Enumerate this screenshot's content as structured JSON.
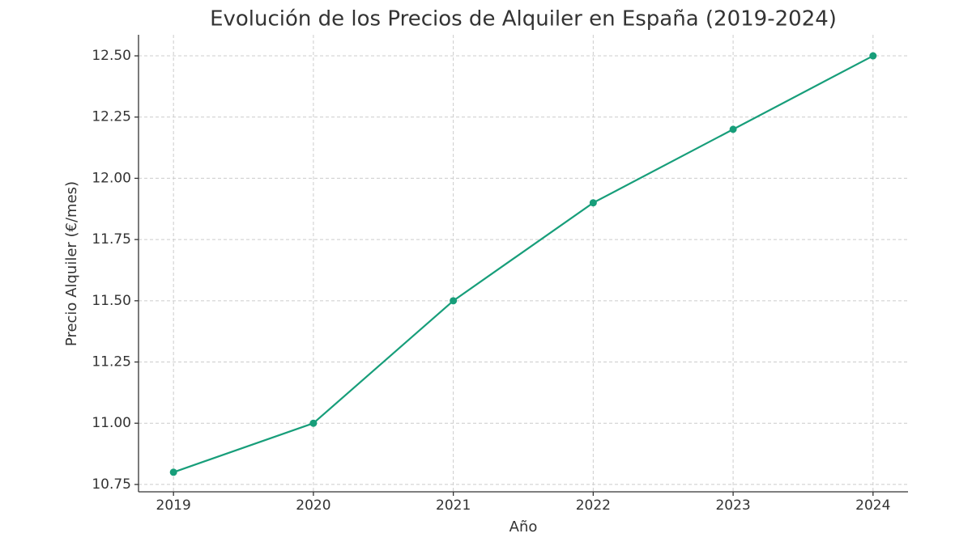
{
  "chart_data": {
    "type": "line",
    "title": "Evolución de los Precios de Alquiler en España (2019-2024)",
    "x_label": "Año",
    "y_label": "Precio Alquiler (€/mes)",
    "x": [
      2019,
      2020,
      2021,
      2022,
      2023,
      2024
    ],
    "series": [
      {
        "color": "#179e7a",
        "values": [
          10.8,
          11.0,
          11.5,
          11.9,
          12.2,
          12.5
        ]
      }
    ],
    "xlim": [
      2018.75,
      2024.25
    ],
    "xticks": [
      2019,
      2020,
      2021,
      2022,
      2023,
      2024
    ],
    "ylim": [
      10.72,
      12.586
    ],
    "yticks": [
      {
        "value": 10.75,
        "label": "10.75"
      },
      {
        "value": 11.0,
        "label": "11.00"
      },
      {
        "value": 11.25,
        "label": "11.25"
      },
      {
        "value": 11.5,
        "label": "11.50"
      },
      {
        "value": 11.75,
        "label": "11.75"
      },
      {
        "value": 12.0,
        "label": "12.00"
      },
      {
        "value": 12.25,
        "label": "12.25"
      },
      {
        "value": 12.5,
        "label": "12.50"
      }
    ],
    "grid": true
  }
}
